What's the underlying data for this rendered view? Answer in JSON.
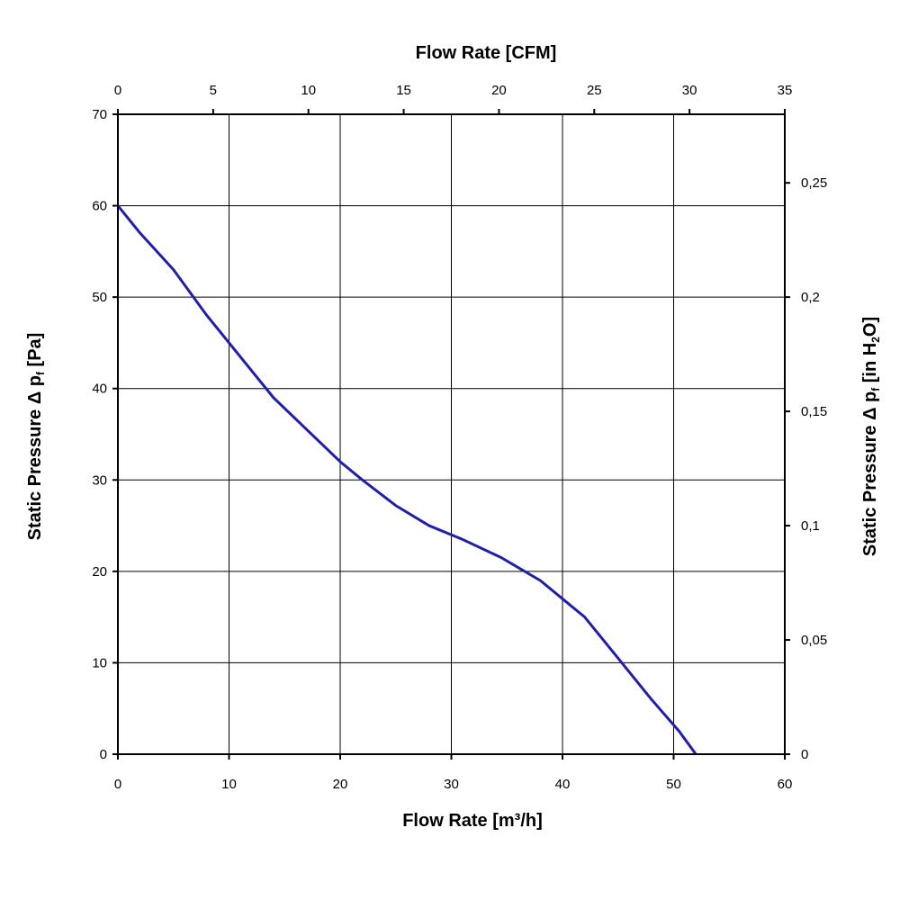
{
  "chart_data": {
    "type": "line",
    "title": "",
    "xlabel": "Flow Rate [m³/h]",
    "ylabel": "Static Pressure Δ pf [Pa]",
    "x2label": "Flow Rate [CFM]",
    "y2label": "Static Pressure Δ pf [in H2O]",
    "label_parts": {
      "ylabel": {
        "before": "Static Pressure Δ p",
        "sub": "f",
        "after": " [Pa]"
      },
      "y2label": {
        "before": "Static Pressure Δ p",
        "sub": "f",
        "mid": " [in H",
        "sub2": "2",
        "after": "O]"
      }
    },
    "xlim": [
      0,
      60
    ],
    "ylim": [
      0,
      70
    ],
    "x2lim": [
      0,
      35
    ],
    "y2lim": [
      0,
      0.28
    ],
    "xticks": [
      0,
      10,
      20,
      30,
      40,
      50,
      60
    ],
    "yticks": [
      0,
      10,
      20,
      30,
      40,
      50,
      60,
      70
    ],
    "x2ticks": [
      0,
      5,
      10,
      15,
      20,
      25,
      30,
      35
    ],
    "y2ticks": [
      0,
      0.05,
      0.1,
      0.15,
      0.2,
      0.25
    ],
    "y2tick_labels": [
      "0",
      "0,05",
      "0,1",
      "0,15",
      "0,2",
      "0,25"
    ],
    "grid": true,
    "line_color": "#1f1fa8",
    "series": [
      {
        "x": [
          0,
          2,
          5,
          8,
          10,
          12,
          14,
          17,
          20,
          22,
          25,
          28,
          31,
          34.5,
          38,
          42,
          45,
          48,
          50.5,
          52
        ],
        "y": [
          60,
          57,
          53,
          48,
          45,
          42,
          39,
          35.5,
          32,
          30,
          27.2,
          25,
          23.5,
          21.5,
          19,
          15,
          10.5,
          6,
          2.5,
          0
        ]
      }
    ]
  }
}
